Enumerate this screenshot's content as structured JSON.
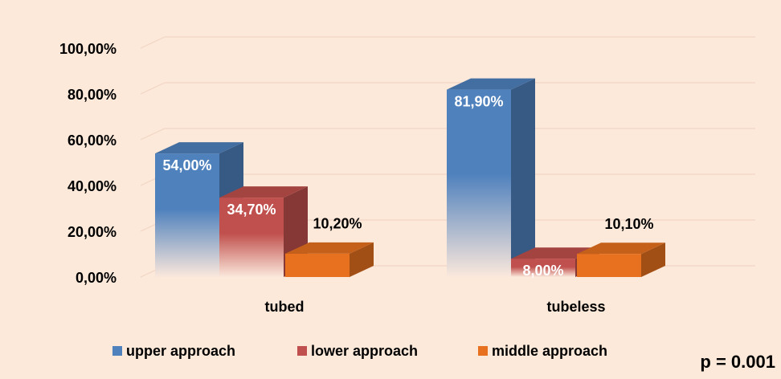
{
  "chart_data": {
    "type": "bar3d",
    "categories": [
      "tubed",
      "tubeless"
    ],
    "series": [
      {
        "name": "upper approach",
        "color": "#4f81bd",
        "values": [
          54.0,
          81.9
        ],
        "value_labels": [
          "54,00%",
          "81,90%"
        ]
      },
      {
        "name": "lower approach",
        "color": "#c0504d",
        "values": [
          34.7,
          8.0
        ],
        "value_labels": [
          "34,70%",
          "8,00%"
        ]
      },
      {
        "name": "middle approach",
        "color": "#e8711f",
        "values": [
          10.2,
          10.1
        ],
        "value_labels": [
          "10,20%",
          "10,10%"
        ]
      }
    ],
    "ylim": [
      0,
      100
    ],
    "yticks": [
      {
        "value": 0,
        "label": "0,00%"
      },
      {
        "value": 20,
        "label": "20,00%"
      },
      {
        "value": 40,
        "label": "40,00%"
      },
      {
        "value": 60,
        "label": "60,00%"
      },
      {
        "value": 80,
        "label": "80,00%"
      },
      {
        "value": 100,
        "label": "100,00%"
      }
    ],
    "grid": true,
    "legend": "bottom",
    "annotation": "p = 0.001"
  }
}
